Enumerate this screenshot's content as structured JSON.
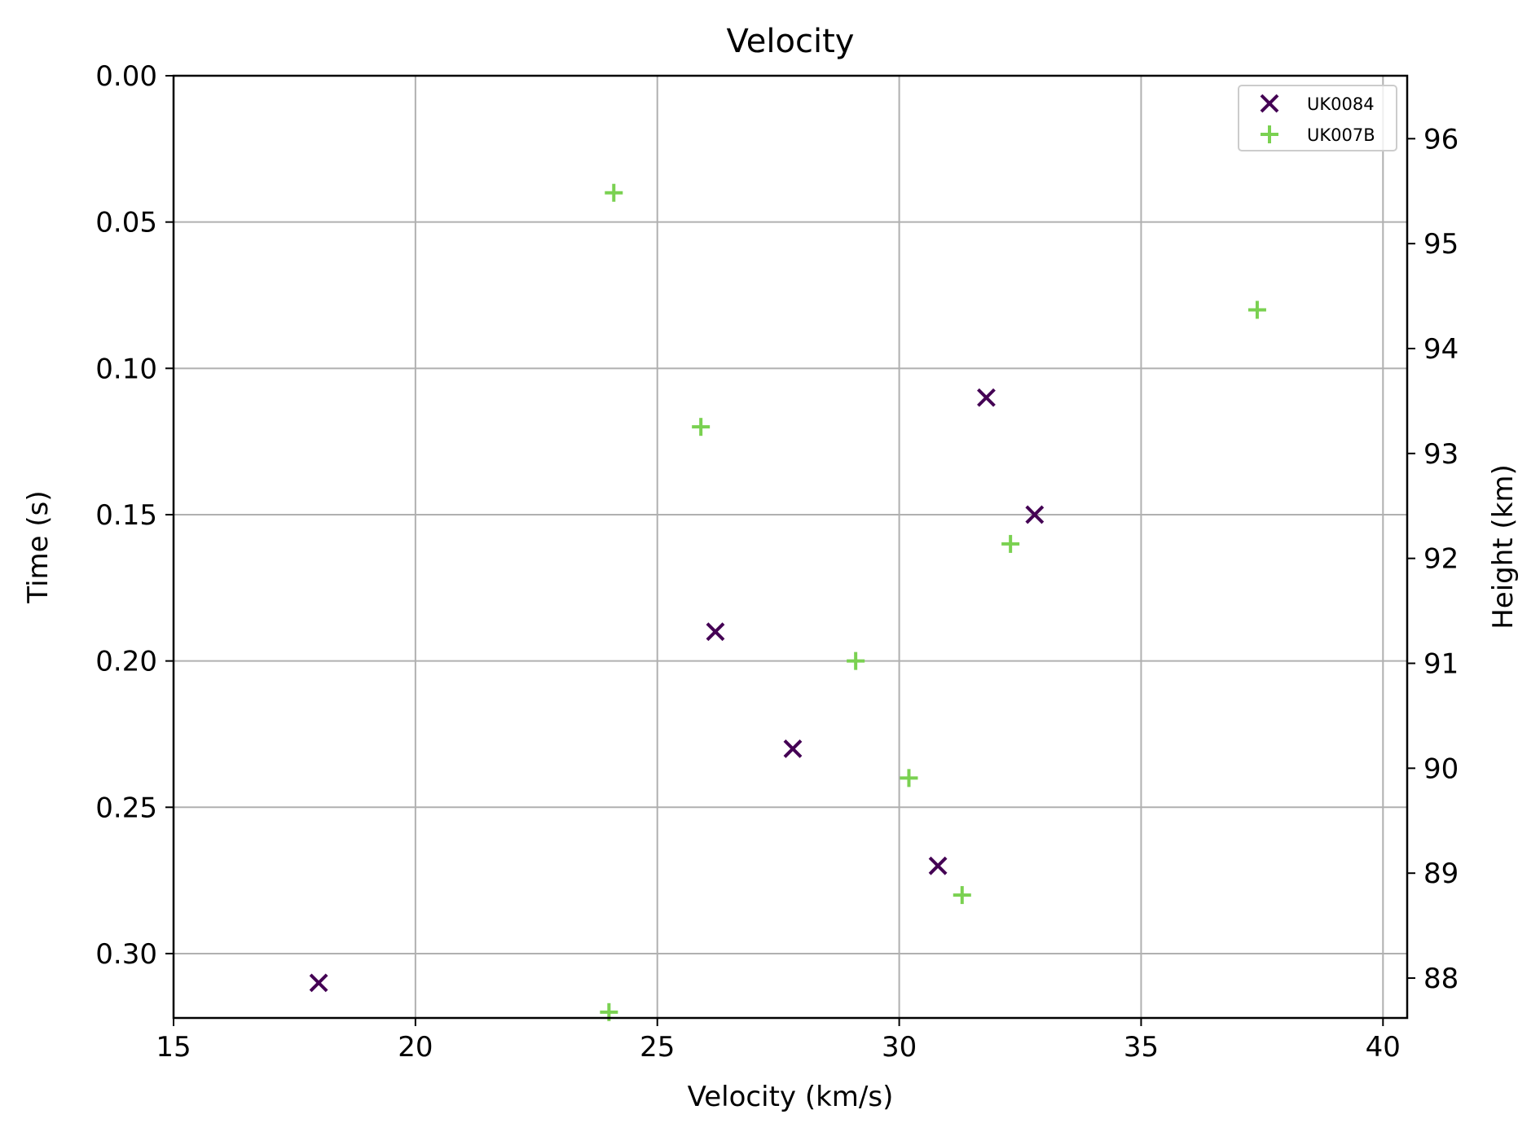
{
  "chart_data": {
    "type": "scatter",
    "title": "Velocity",
    "xlabel": "Velocity (km/s)",
    "ylabel": "Time (s)",
    "y2label": "Height (km)",
    "xlim": [
      15,
      40.5
    ],
    "ylim": [
      0.322,
      0.0
    ],
    "y2lim": [
      87.62,
      96.6
    ],
    "xticks": [
      "15",
      "20",
      "25",
      "30",
      "35",
      "40"
    ],
    "yticks": [
      "0.00",
      "0.05",
      "0.10",
      "0.15",
      "0.20",
      "0.25",
      "0.30"
    ],
    "y2ticks": [
      "88",
      "89",
      "90",
      "91",
      "92",
      "93",
      "94",
      "95",
      "96"
    ],
    "grid": true,
    "legend_position": "upper-right",
    "series": [
      {
        "name": "UK0084",
        "marker": "x",
        "color": "#440154",
        "points": [
          {
            "x": 31.8,
            "y": 0.11
          },
          {
            "x": 32.8,
            "y": 0.15
          },
          {
            "x": 26.2,
            "y": 0.19
          },
          {
            "x": 27.8,
            "y": 0.23
          },
          {
            "x": 30.8,
            "y": 0.27
          },
          {
            "x": 18.0,
            "y": 0.31
          }
        ]
      },
      {
        "name": "UK007B",
        "marker": "+",
        "color": "#7ad151",
        "points": [
          {
            "x": 24.1,
            "y": 0.04
          },
          {
            "x": 37.4,
            "y": 0.08
          },
          {
            "x": 25.9,
            "y": 0.12
          },
          {
            "x": 32.3,
            "y": 0.16
          },
          {
            "x": 29.1,
            "y": 0.2
          },
          {
            "x": 30.2,
            "y": 0.24
          },
          {
            "x": 31.3,
            "y": 0.28
          },
          {
            "x": 24.0,
            "y": 0.32
          }
        ]
      }
    ]
  }
}
